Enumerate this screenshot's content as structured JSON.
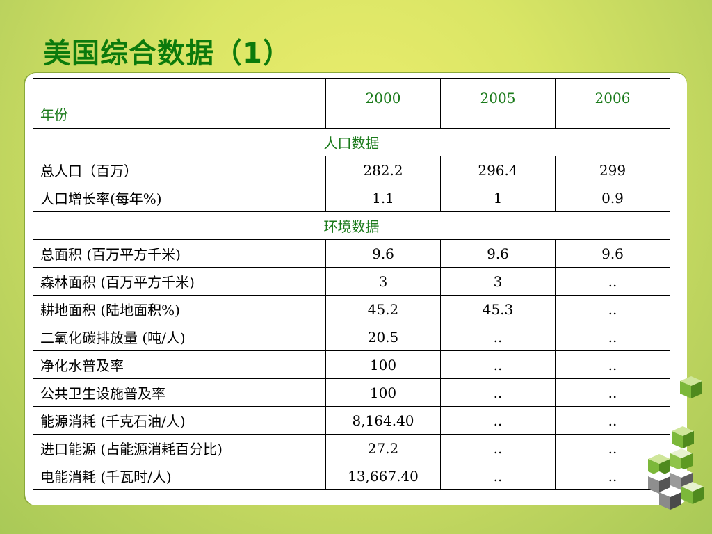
{
  "slide": {
    "title": "美国综合数据（1）"
  },
  "table": {
    "header": {
      "label": "年份",
      "years": [
        "2000",
        "2005",
        "2006"
      ]
    },
    "sections": [
      {
        "title": "人口数据",
        "rows": [
          {
            "label": "总人口（百万）",
            "values": [
              "282.2",
              "296.4",
              "299"
            ]
          },
          {
            "label": "人口增长率(每年%)",
            "values": [
              "1.1",
              "1",
              "0.9"
            ]
          }
        ]
      },
      {
        "title": "环境数据",
        "rows": [
          {
            "label": "总面积 (百万平方千米)",
            "values": [
              "9.6",
              "9.6",
              "9.6"
            ]
          },
          {
            "label": "森林面积 (百万平方千米)",
            "values": [
              "3",
              "3",
              ".."
            ]
          },
          {
            "label": "耕地面积 (陆地面积%)",
            "values": [
              "45.2",
              "45.3",
              ".."
            ]
          },
          {
            "label": "二氧化碳排放量 (吨/人)",
            "values": [
              "20.5",
              "..",
              ".."
            ]
          },
          {
            "label": "净化水普及率",
            "values": [
              "100",
              "..",
              ".."
            ]
          },
          {
            "label": "公共卫生设施普及率",
            "values": [
              "100",
              "..",
              ".."
            ]
          },
          {
            "label": "能源消耗 (千克石油/人)",
            "values": [
              "8,164.40",
              "..",
              ".."
            ]
          },
          {
            "label": "进口能源 (占能源消耗百分比)",
            "values": [
              "27.2",
              "..",
              ".."
            ]
          },
          {
            "label": "电能消耗 (千瓦时/人)",
            "values": [
              "13,667.40",
              "..",
              ".."
            ]
          }
        ]
      }
    ]
  },
  "colors": {
    "title": "#0c7a0c",
    "header_text": "#1a7a1a",
    "accent_green": "#6fae2a"
  },
  "decoration": {
    "icon": "stacked-cubes-icon"
  }
}
